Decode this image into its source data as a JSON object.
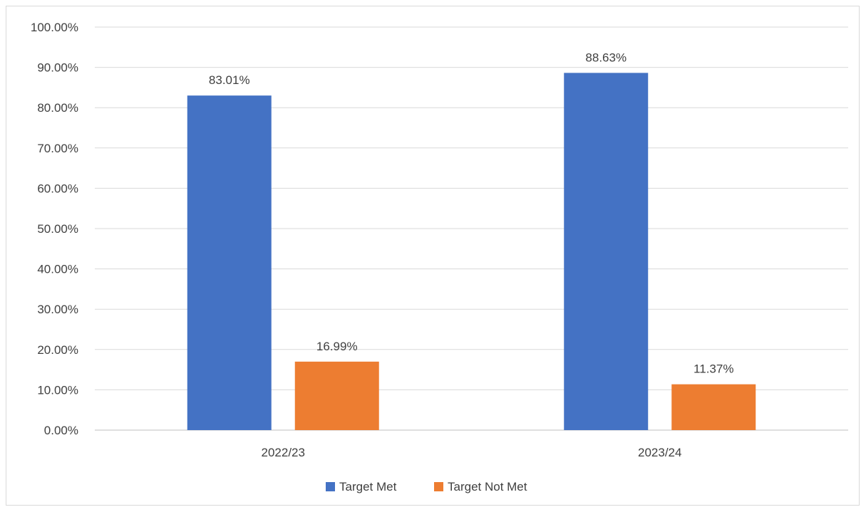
{
  "chart_data": {
    "type": "bar",
    "categories": [
      "2022/23",
      "2023/24"
    ],
    "series": [
      {
        "name": "Target Met",
        "values": [
          83.01,
          88.63
        ],
        "labels": [
          "83.01%",
          "88.63%"
        ],
        "color": "#4472C4"
      },
      {
        "name": "Target Not Met",
        "values": [
          16.99,
          11.37
        ],
        "labels": [
          "16.99%",
          "11.37%"
        ],
        "color": "#ED7D31"
      }
    ],
    "ylim": [
      0,
      100
    ],
    "yticks": [
      "0.00%",
      "10.00%",
      "20.00%",
      "30.00%",
      "40.00%",
      "50.00%",
      "60.00%",
      "70.00%",
      "80.00%",
      "90.00%",
      "100.00%"
    ],
    "grid": true,
    "legend_position": "bottom",
    "gridline_color": "#d9d9d9",
    "axis_color": "#bfbfbf"
  }
}
